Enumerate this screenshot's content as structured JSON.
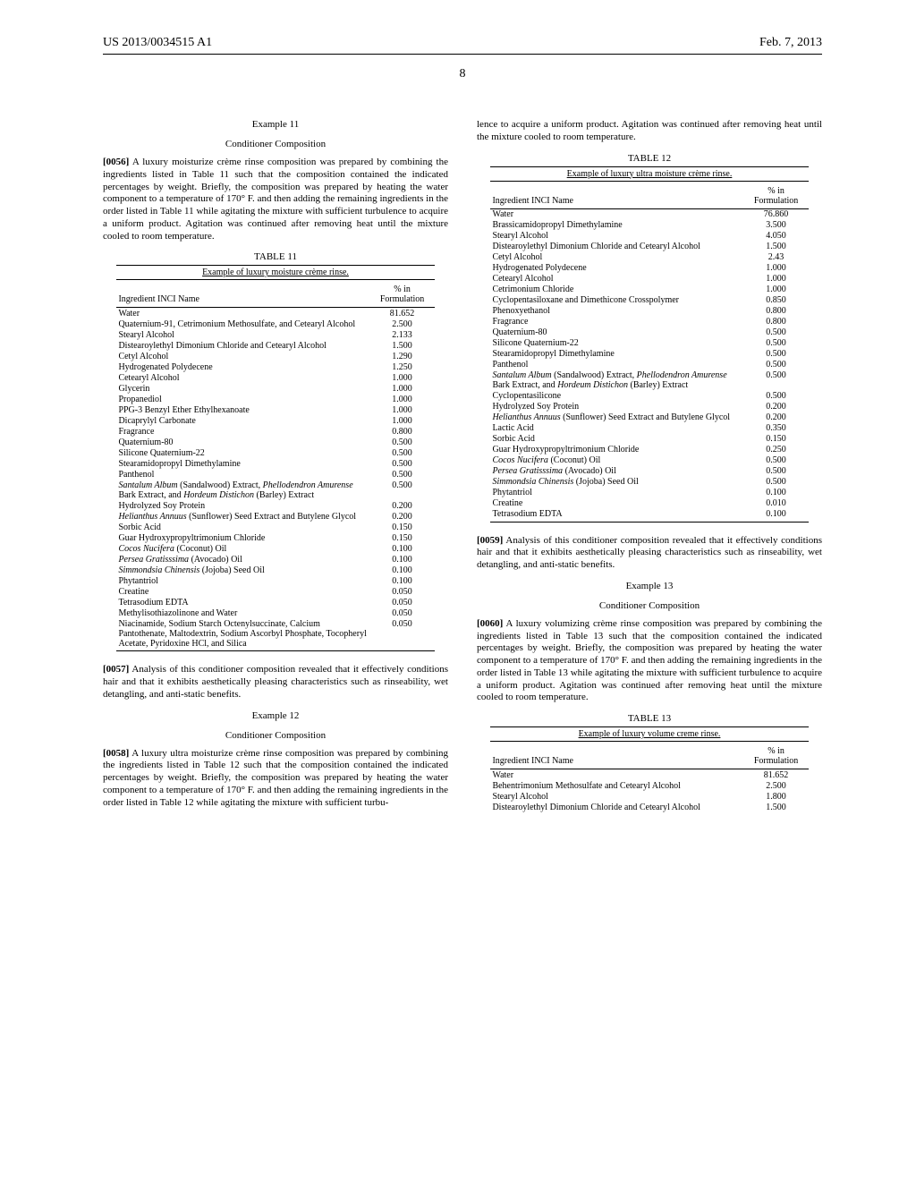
{
  "header": {
    "pub_number": "US 2013/0034515 A1",
    "pub_date": "Feb. 7, 2013",
    "page": "8"
  },
  "col_left": {
    "ex11_title": "Example 11",
    "ex11_sub": "Conditioner Composition",
    "p56_num": "[0056]",
    "p56": "    A luxury moisturize crème rinse composition was prepared by combining the ingredients listed in Table 11 such that the composition contained the indicated percentages by weight. Briefly, the composition was prepared by heating the water component to a temperature of 170° F. and then adding the remaining ingredients in the order listed in Table 11 while agitating the mixture with sufficient turbulence to acquire a uniform product. Agitation was continued after removing heat until the mixture cooled to room temperature.",
    "t11_caption": "TABLE 11",
    "t11_title": "Example of luxury moisture crème rinse.",
    "t11_h1": "Ingredient INCI Name",
    "t11_h2": "% in Formulation",
    "t11_rows": [
      [
        "Water",
        "81.652"
      ],
      [
        "Quaternium-91, Cetrimonium Methosulfate, and Cetearyl Alcohol",
        "2.500"
      ],
      [
        "Stearyl Alcohol",
        "2.133"
      ],
      [
        "Distearoylethyl Dimonium Chloride and Cetearyl Alcohol",
        "1.500"
      ],
      [
        "Cetyl Alcohol",
        "1.290"
      ],
      [
        "Hydrogenated Polydecene",
        "1.250"
      ],
      [
        "Cetearyl Alcohol",
        "1.000"
      ],
      [
        "Glycerin",
        "1.000"
      ],
      [
        "Propanediol",
        "1.000"
      ],
      [
        "PPG-3 Benzyl Ether Ethylhexanoate",
        "1.000"
      ],
      [
        "Dicaprylyl Carbonate",
        "1.000"
      ],
      [
        "Fragrance",
        "0.800"
      ],
      [
        "Quaternium-80",
        "0.500"
      ],
      [
        "Silicone Quaternium-22",
        "0.500"
      ],
      [
        "Stearamidopropyl Dimethylamine",
        "0.500"
      ],
      [
        "Panthenol",
        "0.500"
      ],
      [
        "<i>Santalum Album</i> (Sandalwood) Extract, <i>Phellodendron Amurense</i> Bark Extract, and <i>Hordeum Distichon</i> (Barley) Extract",
        "0.500"
      ],
      [
        "Hydrolyzed Soy Protein",
        "0.200"
      ],
      [
        "<i>Helianthus Annuus</i> (Sunflower) Seed Extract and Butylene Glycol",
        "0.200"
      ],
      [
        "Sorbic Acid",
        "0.150"
      ],
      [
        "Guar Hydroxypropyltrimonium Chloride",
        "0.150"
      ],
      [
        "<i>Cocos Nucifera</i> (Coconut) Oil",
        "0.100"
      ],
      [
        "<i>Persea Gratisssima</i> (Avocado) Oil",
        "0.100"
      ],
      [
        "<i>Simmondsia Chinensis</i> (Jojoba) Seed Oil",
        "0.100"
      ],
      [
        "Phytantriol",
        "0.100"
      ],
      [
        "Creatine",
        "0.050"
      ],
      [
        "Tetrasodium EDTA",
        "0.050"
      ],
      [
        "Methylisothiazolinone and Water",
        "0.050"
      ],
      [
        "Niacinamide, Sodium Starch Octenylsuccinate, Calcium Pantothenate, Maltodextrin, Sodium Ascorbyl Phosphate, Tocopheryl Acetate, Pyridoxine HCl, and Silica",
        "0.050"
      ]
    ],
    "p57_num": "[0057]",
    "p57": "    Analysis of this conditioner composition revealed that it effectively conditions hair and that it exhibits aesthetically pleasing characteristics such as rinseability, wet detangling, and anti-static benefits.",
    "ex12_title": "Example 12",
    "ex12_sub": "Conditioner Composition",
    "p58_num": "[0058]",
    "p58": "    A luxury ultra moisturize crème rinse composition was prepared by combining the ingredients listed in Table 12 such that the composition contained the indicated percentages by weight. Briefly, the composition was prepared by heating the water component to a temperature of 170° F. and then adding the remaining ingredients in the order listed in Table 12 while agitating the mixture with sufficient turbu-"
  },
  "col_right": {
    "cont": "lence to acquire a uniform product. Agitation was continued after removing heat until the mixture cooled to room temperature.",
    "t12_caption": "TABLE 12",
    "t12_title": "Example of luxury ultra moisture crème rinse.",
    "t12_h1": "Ingredient INCI Name",
    "t12_h2": "% in Formulation",
    "t12_rows": [
      [
        "Water",
        "76.860"
      ],
      [
        "Brassicamidopropyl Dimethylamine",
        "3.500"
      ],
      [
        "Stearyl Alcohol",
        "4.050"
      ],
      [
        "Distearoylethyl Dimonium Chloride and Cetearyl Alcohol",
        "1.500"
      ],
      [
        "Cetyl Alcohol",
        "2.43"
      ],
      [
        "Hydrogenated Polydecene",
        "1.000"
      ],
      [
        "Cetearyl Alcohol",
        "1.000"
      ],
      [
        "Cetrimonium Chloride",
        "1.000"
      ],
      [
        "Cyclopentasiloxane and Dimethicone Crosspolymer",
        "0.850"
      ],
      [
        "Phenoxyethanol",
        "0.800"
      ],
      [
        "Fragrance",
        "0.800"
      ],
      [
        "Quaternium-80",
        "0.500"
      ],
      [
        "Silicone Quaternium-22",
        "0.500"
      ],
      [
        "Stearamidopropyl Dimethylamine",
        "0.500"
      ],
      [
        "Panthenol",
        "0.500"
      ],
      [
        "<i>Santalum Album</i> (Sandalwood) Extract, <i>Phellodendron Amurense</i> Bark Extract, and <i>Hordeum Distichon</i> (Barley) Extract",
        "0.500"
      ],
      [
        "Cyclopentasilicone",
        "0.500"
      ],
      [
        "Hydrolyzed Soy Protein",
        "0.200"
      ],
      [
        "<i>Helianthus Annuus</i> (Sunflower) Seed Extract and Butylene Glycol",
        "0.200"
      ],
      [
        "Lactic Acid",
        "0.350"
      ],
      [
        "Sorbic Acid",
        "0.150"
      ],
      [
        "Guar Hydroxypropyltrimonium Chloride",
        "0.250"
      ],
      [
        "<i>Cocos Nucifera</i> (Coconut) Oil",
        "0.500"
      ],
      [
        "<i>Persea Gratisssima</i> (Avocado) Oil",
        "0.500"
      ],
      [
        "<i>Simmondsia Chinensis</i> (Jojoba) Seed Oil",
        "0.500"
      ],
      [
        "Phytantriol",
        "0.100"
      ],
      [
        "Creatine",
        "0.010"
      ],
      [
        "Tetrasodium EDTA",
        "0.100"
      ]
    ],
    "p59_num": "[0059]",
    "p59": "    Analysis of this conditioner composition revealed that it effectively conditions hair and that it exhibits aesthetically pleasing characteristics such as rinseability, wet detangling, and anti-static benefits.",
    "ex13_title": "Example 13",
    "ex13_sub": "Conditioner Composition",
    "p60_num": "[0060]",
    "p60": "    A luxury volumizing crème rinse composition was prepared by combining the ingredients listed in Table 13 such that the composition contained the indicated percentages by weight. Briefly, the composition was prepared by heating the water component to a temperature of 170° F. and then adding the remaining ingredients in the order listed in Table 13 while agitating the mixture with sufficient turbulence to acquire a uniform product. Agitation was continued after removing heat until the mixture cooled to room temperature.",
    "t13_caption": "TABLE 13",
    "t13_title": "Example of luxury volume creme rinse.",
    "t13_h1": "Ingredient INCI Name",
    "t13_h2": "% in Formulation",
    "t13_rows": [
      [
        "Water",
        "81.652"
      ],
      [
        "Behentrimonium Methosulfate and Cetearyl Alcohol",
        "2.500"
      ],
      [
        "Stearyl Alcohol",
        "1.800"
      ],
      [
        "Distearoylethyl Dimonium Chloride and Cetearyl Alcohol",
        "1.500"
      ]
    ]
  }
}
